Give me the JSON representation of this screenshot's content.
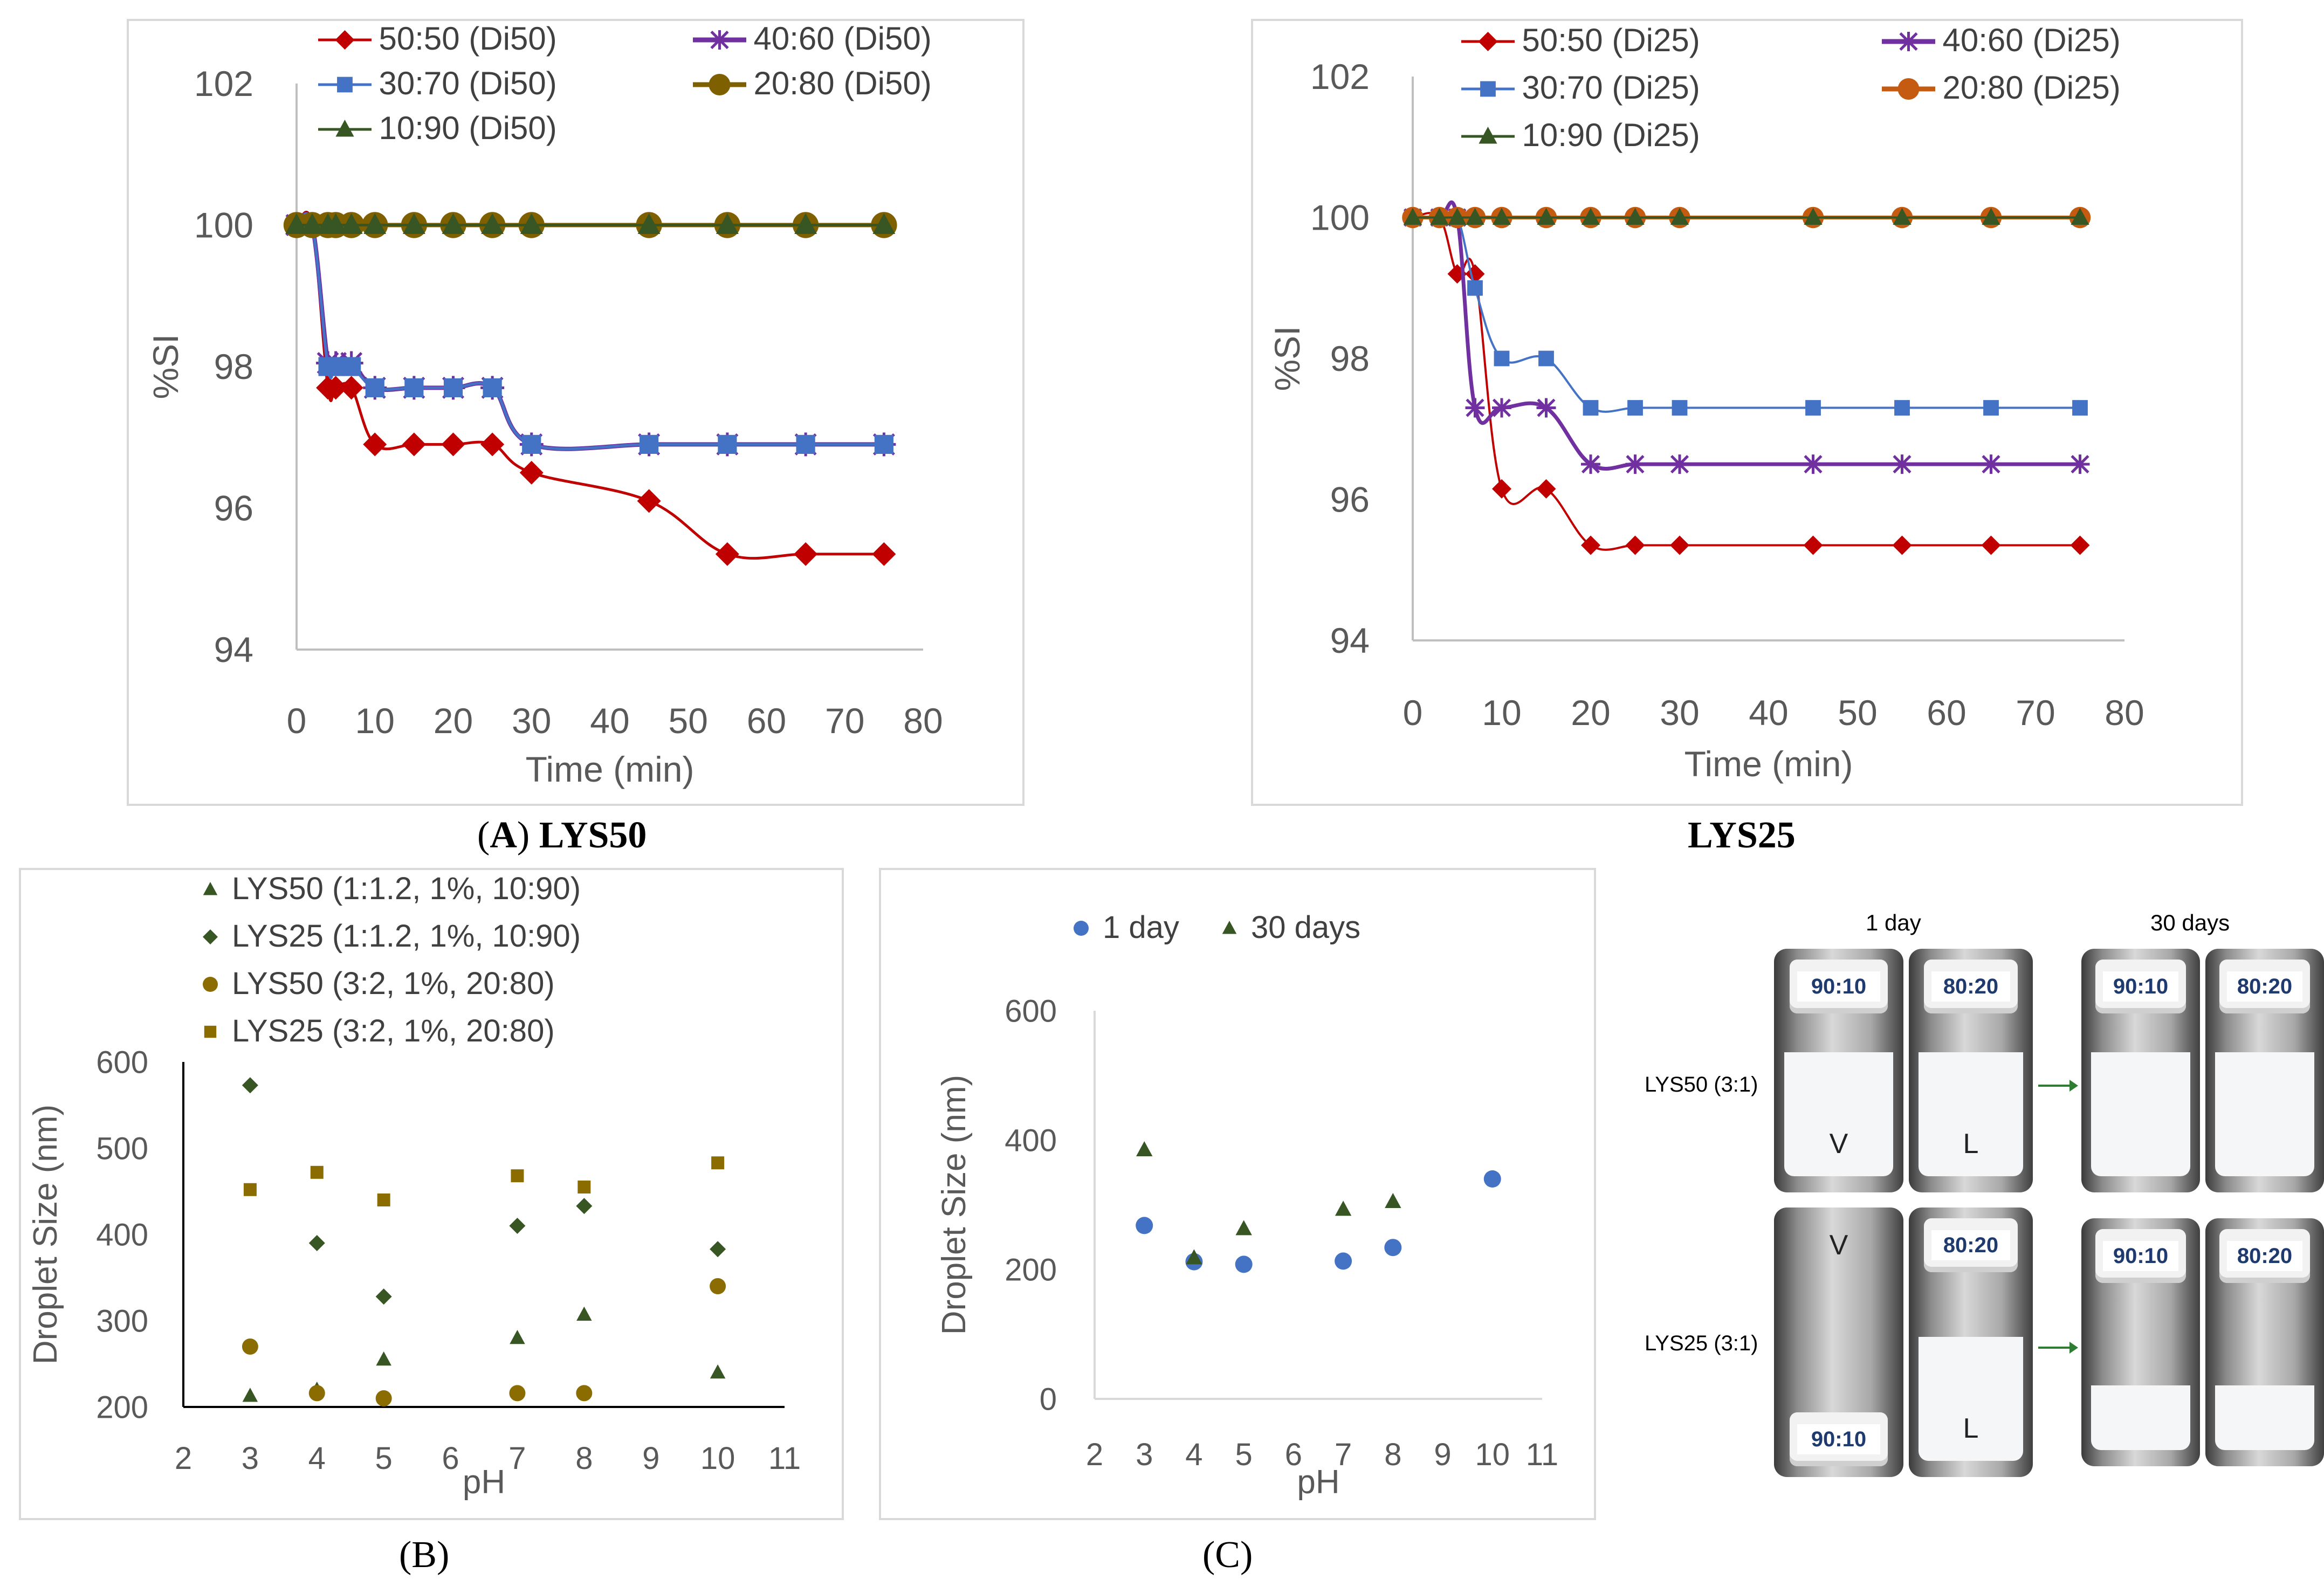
{
  "chart_data": [
    {
      "id": "A1",
      "type": "line",
      "xlabel": "Time (min)",
      "ylabel": "%SI",
      "xlim": [
        0,
        80
      ],
      "ylim": [
        94,
        102
      ],
      "xticks": [
        "0",
        "10",
        "20",
        "30",
        "40",
        "50",
        "60",
        "70",
        "80"
      ],
      "yticks": [
        "94",
        "96",
        "98",
        "100",
        "102"
      ],
      "x": [
        0,
        2,
        4,
        5,
        7,
        10,
        15,
        20,
        25,
        30,
        45,
        55,
        65,
        75
      ],
      "series": [
        {
          "name": "50:50 (Di50)",
          "marker": "diamond",
          "color": "#c00000",
          "values": [
            100,
            100,
            97.7,
            97.7,
            97.7,
            96.9,
            96.9,
            96.9,
            96.9,
            96.5,
            96.1,
            95.35,
            95.35,
            95.35
          ]
        },
        {
          "name": "40:60 (Di50)",
          "marker": "star",
          "color": "#7030a0",
          "values": [
            100,
            100,
            98.05,
            98.05,
            98.05,
            97.7,
            97.7,
            97.7,
            97.7,
            96.9,
            96.9,
            96.9,
            96.9,
            96.9
          ]
        },
        {
          "name": "30:70 (Di50)",
          "marker": "square",
          "color": "#4472c4",
          "values": [
            100,
            100,
            98,
            98,
            98,
            97.7,
            97.7,
            97.7,
            97.7,
            96.9,
            96.9,
            96.9,
            96.9,
            96.9
          ]
        },
        {
          "name": "20:80 (Di50)",
          "marker": "circle",
          "color": "#7f6000",
          "values": [
            100,
            100,
            100,
            100,
            100,
            100,
            100,
            100,
            100,
            100,
            100,
            100,
            100,
            100
          ]
        },
        {
          "name": "10:90 (Di50)",
          "marker": "triangle",
          "color": "#375623",
          "values": [
            100,
            100,
            100,
            100,
            100,
            100,
            100,
            100,
            100,
            100,
            100,
            100,
            100,
            100
          ]
        }
      ]
    },
    {
      "id": "A2",
      "type": "line",
      "xlabel": "Time (min)",
      "ylabel": "%SI",
      "xlim": [
        0,
        80
      ],
      "ylim": [
        94,
        102
      ],
      "xticks": [
        "0",
        "10",
        "20",
        "30",
        "40",
        "50",
        "60",
        "70",
        "80"
      ],
      "yticks": [
        "94",
        "96",
        "98",
        "100",
        "102"
      ],
      "x": [
        0,
        3,
        5,
        7,
        10,
        15,
        20,
        25,
        30,
        45,
        55,
        65,
        75
      ],
      "series": [
        {
          "name": "50:50 (Di25)",
          "marker": "diamond",
          "color": "#c00000",
          "values": [
            100,
            100,
            99.2,
            99.2,
            96.15,
            96.15,
            95.35,
            95.35,
            95.35,
            95.35,
            95.35,
            95.35,
            95.35
          ]
        },
        {
          "name": "40:60 (Di25)",
          "marker": "star",
          "color": "#7030a0",
          "values": [
            100,
            100,
            100,
            97.3,
            97.3,
            97.3,
            96.5,
            96.5,
            96.5,
            96.5,
            96.5,
            96.5,
            96.5
          ]
        },
        {
          "name": "30:70 (Di25)",
          "marker": "square",
          "color": "#4472c4",
          "values": [
            100,
            100,
            100,
            99,
            98,
            98,
            97.3,
            97.3,
            97.3,
            97.3,
            97.3,
            97.3,
            97.3
          ]
        },
        {
          "name": "20:80 (Di25)",
          "marker": "circle",
          "color": "#c55a11",
          "values": [
            100,
            100,
            100,
            100,
            100,
            100,
            100,
            100,
            100,
            100,
            100,
            100,
            100
          ]
        },
        {
          "name": "10:90 (Di25)",
          "marker": "triangle",
          "color": "#375623",
          "values": [
            100,
            100,
            100,
            100,
            100,
            100,
            100,
            100,
            100,
            100,
            100,
            100,
            100
          ]
        }
      ]
    },
    {
      "id": "B",
      "type": "scatter",
      "xlabel": "pH",
      "ylabel": "Droplet Size (nm)",
      "xlim": [
        2,
        11
      ],
      "ylim": [
        200,
        600
      ],
      "xticks": [
        "2",
        "3",
        "4",
        "5",
        "6",
        "7",
        "8",
        "9",
        "10",
        "11"
      ],
      "yticks": [
        "200",
        "300",
        "400",
        "500",
        "600"
      ],
      "series": [
        {
          "name": "LYS50 (1:1.2, 1%, 10:90)",
          "marker": "triangle",
          "color": "#375623",
          "x": [
            3,
            4,
            5,
            7,
            8,
            10
          ],
          "y": [
            213,
            220,
            255,
            280,
            307,
            240
          ]
        },
        {
          "name": "LYS25 (1:1.2, 1%, 10:90)",
          "marker": "diamond",
          "color": "#375623",
          "x": [
            3,
            4,
            5,
            7,
            8,
            10
          ],
          "y": [
            573,
            390,
            328,
            410,
            433,
            383
          ]
        },
        {
          "name": "LYS50 (3:2, 1%, 20:80)",
          "marker": "circle",
          "color": "#8b6c00",
          "x": [
            3,
            4,
            5,
            7,
            8,
            10
          ],
          "y": [
            270,
            216,
            210,
            216,
            216,
            340
          ]
        },
        {
          "name": "LYS25 (3:2, 1%, 20:80)",
          "marker": "square",
          "color": "#8b6c00",
          "x": [
            3,
            4,
            5,
            7,
            8,
            10
          ],
          "y": [
            452,
            472,
            440,
            468,
            455,
            483
          ]
        }
      ]
    },
    {
      "id": "C",
      "type": "scatter",
      "xlabel": "pH",
      "ylabel": "Droplet Size (nm)",
      "xlim": [
        2,
        11
      ],
      "ylim": [
        0,
        600
      ],
      "xticks": [
        "2",
        "3",
        "4",
        "5",
        "6",
        "7",
        "8",
        "9",
        "10",
        "11"
      ],
      "yticks": [
        "0",
        "200",
        "400",
        "600"
      ],
      "series": [
        {
          "name": "1 day",
          "marker": "circle",
          "color": "#4472c4",
          "x": [
            3,
            4,
            5,
            7,
            8,
            10
          ],
          "y": [
            268,
            212,
            208,
            213,
            234,
            340
          ]
        },
        {
          "name": "30 days",
          "marker": "triangle",
          "color": "#375623",
          "x": [
            3,
            4,
            5,
            7,
            8
          ],
          "y": [
            385,
            218,
            263,
            293,
            305
          ]
        }
      ]
    }
  ],
  "captions": {
    "a_open": "(",
    "a_letter": "A",
    "a_close": ")",
    "a_title": "LYS50",
    "a2_title": "LYS25",
    "b": "(B)",
    "c": "(C)"
  },
  "photo": {
    "head_1day": "1 day",
    "head_30days": "30 days",
    "row1_label": "LYS50 (3:1)",
    "row2_label": "LYS25 (3:1)",
    "vials": [
      {
        "cap": "90:10",
        "letter": "V"
      },
      {
        "cap": "80:20",
        "letter": "L"
      },
      {
        "cap": "90:10",
        "letter": ""
      },
      {
        "cap": "80:20",
        "letter": ""
      },
      {
        "cap": "90:10",
        "letter": "V"
      },
      {
        "cap": "80:20",
        "letter": "L"
      },
      {
        "cap": "90:10",
        "letter": ""
      },
      {
        "cap": "80:20",
        "letter": ""
      }
    ]
  }
}
